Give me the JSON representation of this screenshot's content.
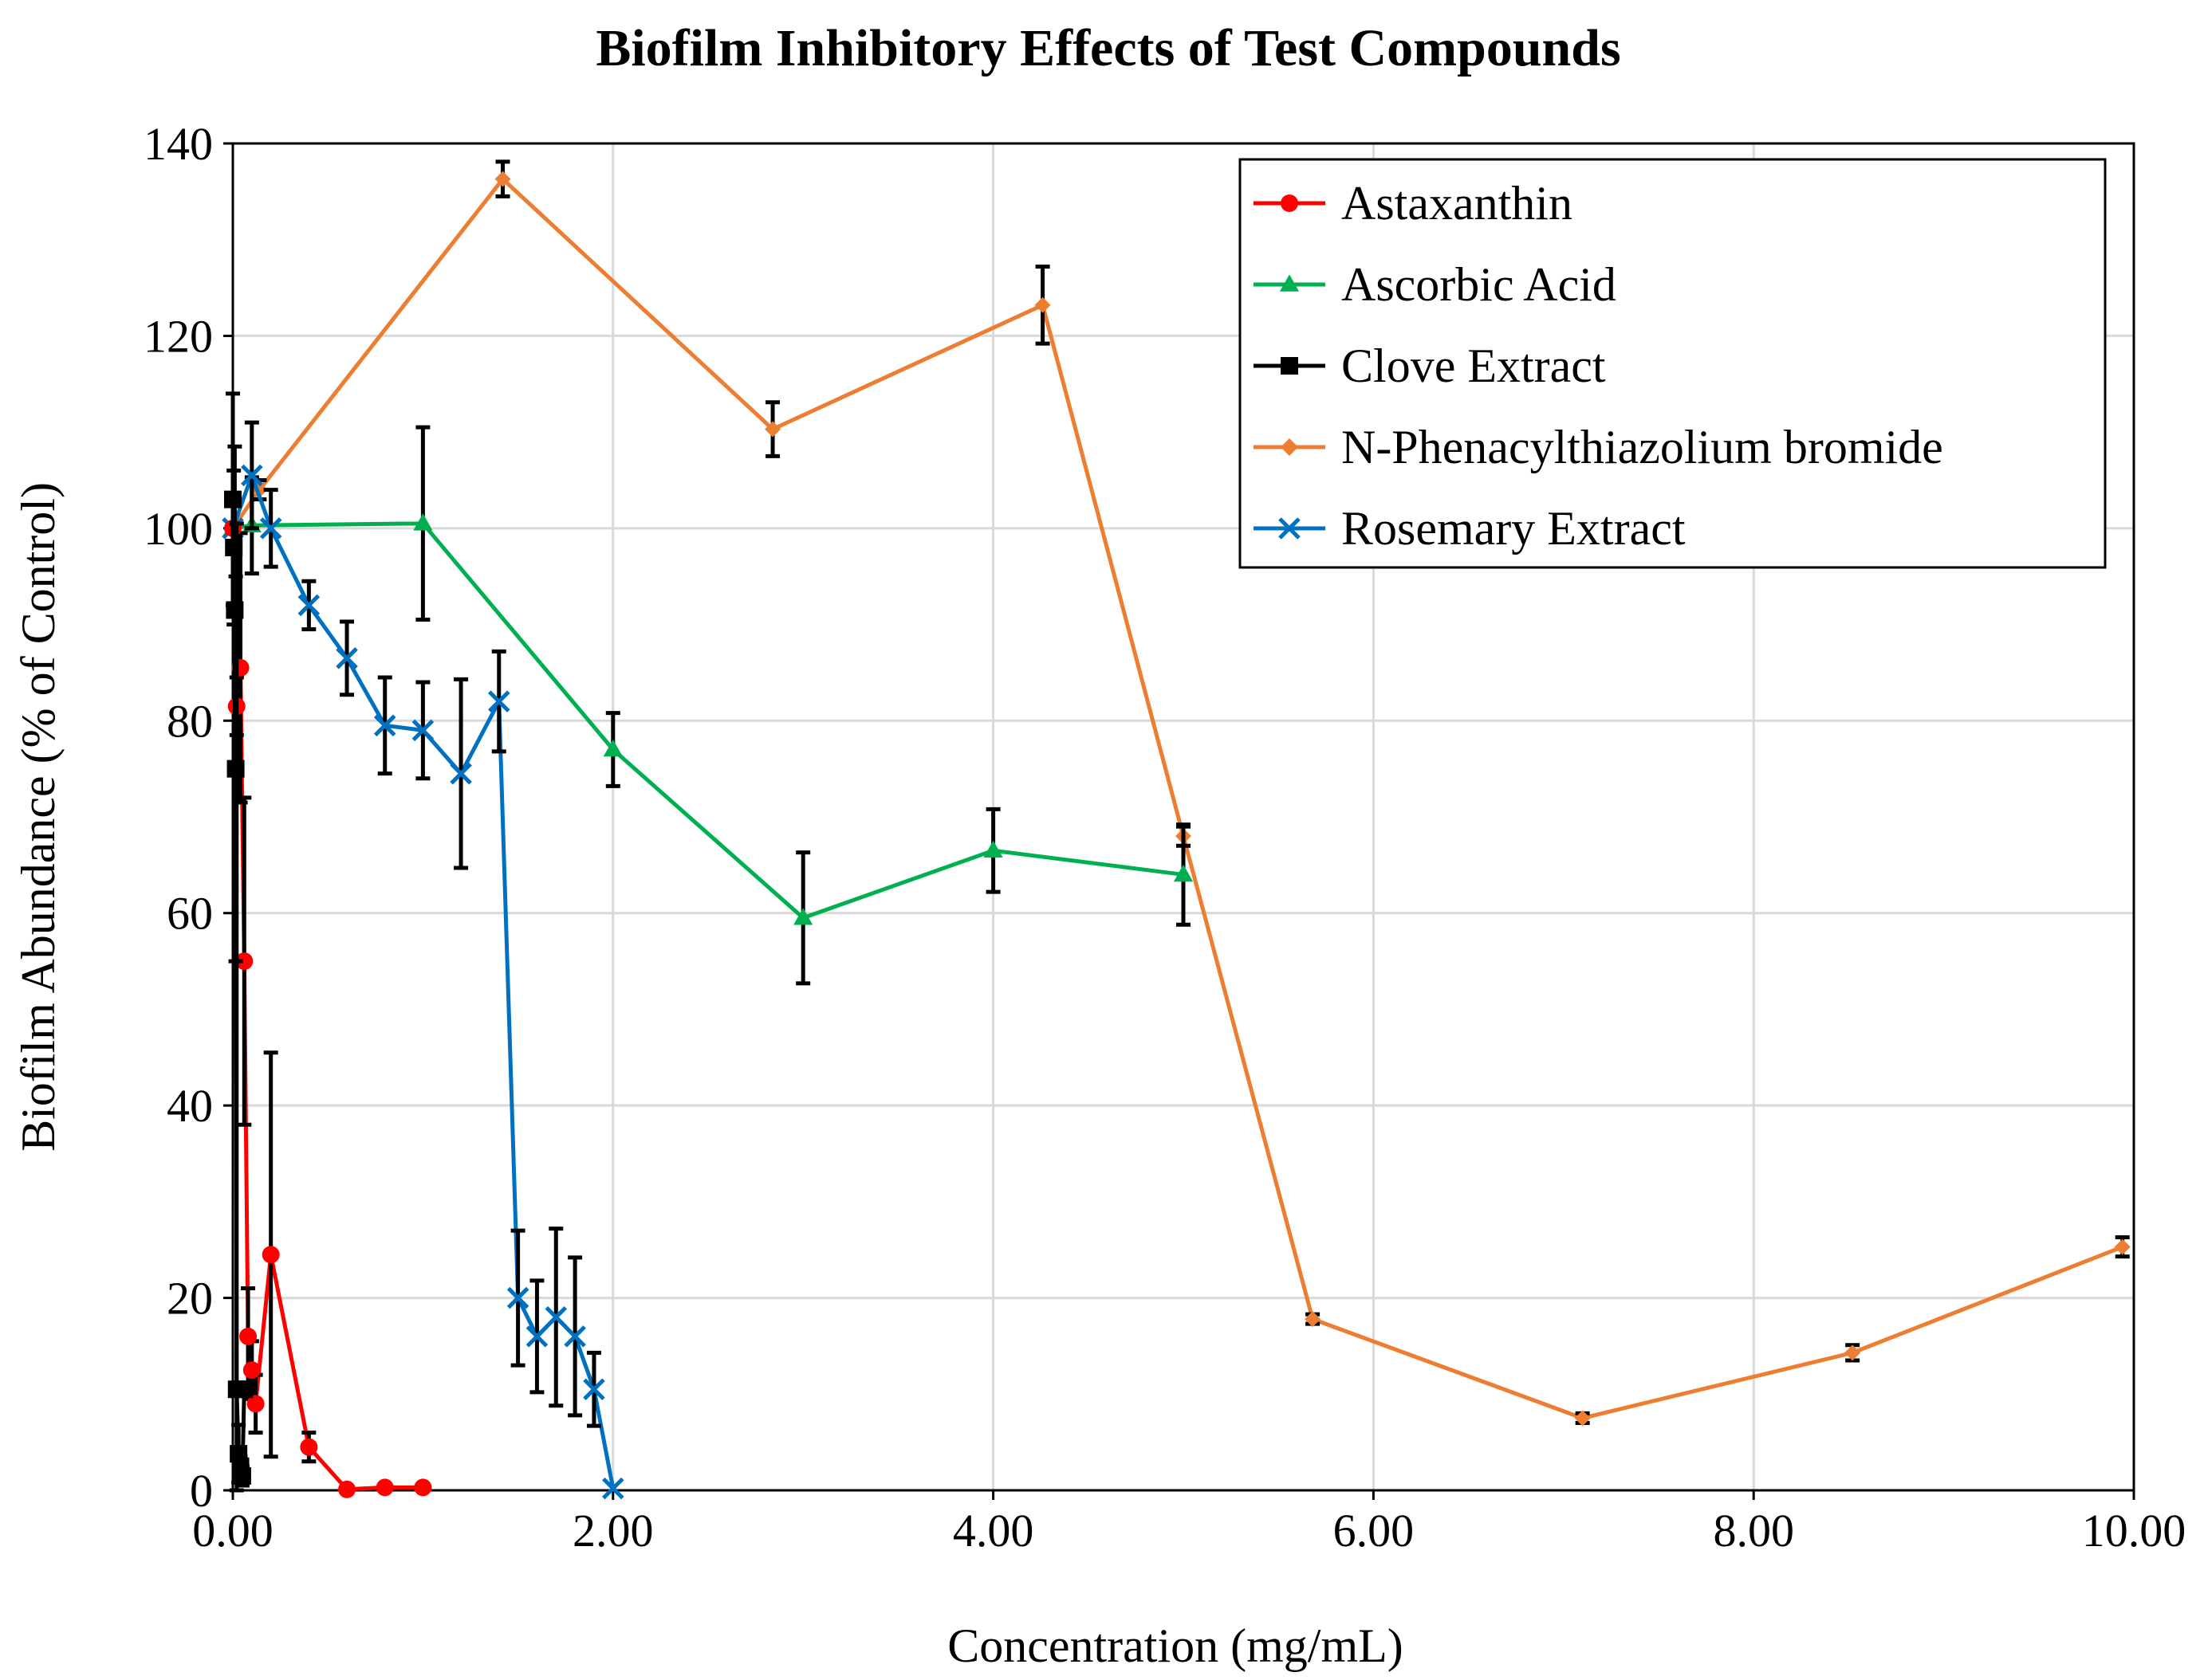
{
  "chart_data": {
    "type": "scatter",
    "title": "Biofilm Inhibitory Effects of Test Compounds",
    "xlabel": "Concentration (mg/mL)",
    "ylabel": "Biofilm Abundance (% of Control)",
    "xlim": [
      0,
      10
    ],
    "ylim": [
      0,
      140
    ],
    "xticks": [
      0,
      2,
      4,
      6,
      8,
      10
    ],
    "xtick_labels": [
      "0.00",
      "2.00",
      "4.00",
      "6.00",
      "8.00",
      "10.00"
    ],
    "yticks": [
      0,
      20,
      40,
      60,
      80,
      100,
      120,
      140
    ],
    "ytick_labels": [
      "0",
      "20",
      "40",
      "60",
      "80",
      "100",
      "120",
      "140"
    ],
    "grid": true,
    "legend_position": "top-right",
    "series": [
      {
        "name": "Astaxanthin",
        "color": "#ff0000",
        "marker": "circle",
        "points": [
          {
            "x": 0.0,
            "y": 100.0,
            "err": 0
          },
          {
            "x": 0.02,
            "y": 81.5,
            "err": 3
          },
          {
            "x": 0.04,
            "y": 85.5,
            "err": 14
          },
          {
            "x": 0.06,
            "y": 55.0,
            "err": 17
          },
          {
            "x": 0.08,
            "y": 16.0,
            "err": 5
          },
          {
            "x": 0.1,
            "y": 12.5,
            "err": 3
          },
          {
            "x": 0.12,
            "y": 9.0,
            "err": 3
          },
          {
            "x": 0.2,
            "y": 24.5,
            "err": 21
          },
          {
            "x": 0.4,
            "y": 4.5,
            "err": 1.5
          },
          {
            "x": 0.6,
            "y": 0.1,
            "err": 0
          },
          {
            "x": 0.8,
            "y": 0.3,
            "err": 0
          },
          {
            "x": 1.0,
            "y": 0.3,
            "err": 0
          }
        ]
      },
      {
        "name": "Ascorbic Acid",
        "color": "#00b050",
        "marker": "triangle",
        "points": [
          {
            "x": 0.0,
            "y": 100.0,
            "err": 0
          },
          {
            "x": 0.1,
            "y": 100.3,
            "err": 5
          },
          {
            "x": 1.0,
            "y": 100.5,
            "err": 10
          },
          {
            "x": 2.0,
            "y": 77.0,
            "err": 3.8
          },
          {
            "x": 3.0,
            "y": 59.5,
            "err": 6.8
          },
          {
            "x": 4.0,
            "y": 66.5,
            "err": 4.3
          },
          {
            "x": 5.0,
            "y": 64.0,
            "err": 5.2
          }
        ]
      },
      {
        "name": "Clove Extract",
        "color": "#000000",
        "marker": "square",
        "points": [
          {
            "x": 0.0,
            "y": 103.0,
            "err": 11
          },
          {
            "x": 0.005,
            "y": 98.0,
            "err": 8
          },
          {
            "x": 0.01,
            "y": 91.5,
            "err": 17
          },
          {
            "x": 0.015,
            "y": 75.0,
            "err": 20
          },
          {
            "x": 0.02,
            "y": 10.5,
            "err": 90
          },
          {
            "x": 0.03,
            "y": 3.8,
            "err": 3
          },
          {
            "x": 0.04,
            "y": 2.5,
            "err": 1
          },
          {
            "x": 0.05,
            "y": 1.5,
            "err": 1
          },
          {
            "x": 0.06,
            "y": 10.5,
            "err": 0.5
          }
        ]
      },
      {
        "name": "N-Phenacylthiazolium bromide",
        "color": "#ed7d31",
        "marker": "diamond",
        "points": [
          {
            "x": 0.0,
            "y": 100.0,
            "err": 0
          },
          {
            "x": 0.14,
            "y": 104.0,
            "err": 1
          },
          {
            "x": 1.42,
            "y": 136.3,
            "err": 1.8
          },
          {
            "x": 2.84,
            "y": 110.3,
            "err": 2.8
          },
          {
            "x": 4.26,
            "y": 123.2,
            "err": 4
          },
          {
            "x": 5.0,
            "y": 68.0,
            "err": 1
          },
          {
            "x": 5.68,
            "y": 17.8,
            "err": 0.5
          },
          {
            "x": 7.1,
            "y": 7.5,
            "err": 0.5
          },
          {
            "x": 8.52,
            "y": 14.3,
            "err": 0.8
          },
          {
            "x": 9.94,
            "y": 25.3,
            "err": 1
          }
        ]
      },
      {
        "name": "Rosemary Extract",
        "color": "#0070c0",
        "marker": "x",
        "points": [
          {
            "x": 0.0,
            "y": 100.0,
            "err": 0
          },
          {
            "x": 0.1,
            "y": 105.5,
            "err": 5.5
          },
          {
            "x": 0.2,
            "y": 100.0,
            "err": 4
          },
          {
            "x": 0.4,
            "y": 92.0,
            "err": 2.5
          },
          {
            "x": 0.6,
            "y": 86.5,
            "err": 3.8
          },
          {
            "x": 0.8,
            "y": 79.5,
            "err": 5
          },
          {
            "x": 1.0,
            "y": 79.0,
            "err": 5
          },
          {
            "x": 1.2,
            "y": 74.5,
            "err": 9.8
          },
          {
            "x": 1.4,
            "y": 82.0,
            "err": 5.2
          },
          {
            "x": 1.5,
            "y": 20.0,
            "err": 7
          },
          {
            "x": 1.6,
            "y": 16.0,
            "err": 5.8
          },
          {
            "x": 1.7,
            "y": 18.0,
            "err": 9.2
          },
          {
            "x": 1.8,
            "y": 16.0,
            "err": 8.2
          },
          {
            "x": 1.9,
            "y": 10.5,
            "err": 3.8
          },
          {
            "x": 2.0,
            "y": 0.2,
            "err": 0
          }
        ]
      }
    ]
  }
}
